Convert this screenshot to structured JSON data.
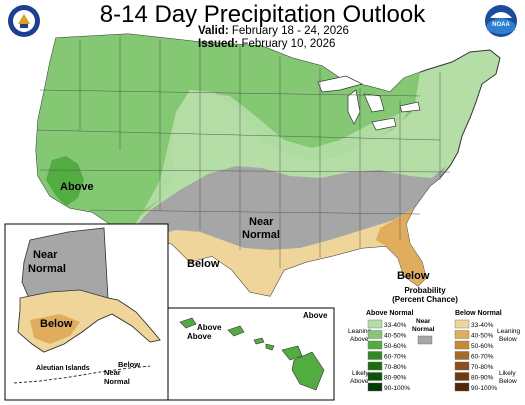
{
  "header": {
    "title": "8-14 Day Precipitation Outlook",
    "valid_label": "Valid:",
    "valid_value": "February 18 - 24, 2026",
    "issued_label": "Issued:",
    "issued_value": "February 10, 2026"
  },
  "logos": {
    "left": "doc-seal-icon",
    "right": "noaa-logo-icon",
    "right_text": "NOAA"
  },
  "map": {
    "labels": {
      "above_west": "Above",
      "near_normal_center_1": "Near",
      "near_normal_center_2": "Normal",
      "below_south": "Below",
      "below_florida": "Below",
      "alaska_near_1": "Near",
      "alaska_near_2": "Normal",
      "alaska_below": "Below",
      "aleutian": "Aleutian Islands",
      "aleutian_below": "Below",
      "aleutian_near_1": "Near",
      "aleutian_near_2": "Normal",
      "hawaii_above_1": "Above",
      "hawaii_above_2": "Above",
      "hawaii_above_3": "Above"
    },
    "colors": {
      "above_33_40": "#b4dea6",
      "above_40_50": "#84c873",
      "above_50_60": "#52ad40",
      "near_normal": "#a6a6a6",
      "below_33_40": "#efd59a",
      "below_40_50": "#e0ad5c",
      "below_50_60": "#c98a34",
      "water": "#ffffff",
      "border": "#333333"
    }
  },
  "legend": {
    "title_1": "Probability",
    "title_2": "(Percent Chance)",
    "above_header": "Above Normal",
    "below_header": "Below Normal",
    "near_1": "Near",
    "near_2": "Normal",
    "leaning_above_1": "Leaning",
    "leaning_above_2": "Above",
    "likely_above_1": "Likely",
    "likely_above_2": "Above",
    "leaning_below_1": "Leaning",
    "leaning_below_2": "Below",
    "likely_below_1": "Likely",
    "likely_below_2": "Below",
    "above_bins": [
      {
        "label": "33-40%",
        "color": "#b4dea6"
      },
      {
        "label": "40-50%",
        "color": "#84c873"
      },
      {
        "label": "50-60%",
        "color": "#52ad40"
      },
      {
        "label": "60-70%",
        "color": "#2e8b22"
      },
      {
        "label": "70-80%",
        "color": "#1d6d15"
      },
      {
        "label": "80-90%",
        "color": "#0f520b"
      },
      {
        "label": "90-100%",
        "color": "#053a03"
      }
    ],
    "below_bins": [
      {
        "label": "33-40%",
        "color": "#efd59a"
      },
      {
        "label": "40-50%",
        "color": "#e0ad5c"
      },
      {
        "label": "50-60%",
        "color": "#c98a34"
      },
      {
        "label": "60-70%",
        "color": "#a66a28"
      },
      {
        "label": "70-80%",
        "color": "#8a4f1c"
      },
      {
        "label": "80-90%",
        "color": "#6e3a12"
      },
      {
        "label": "90-100%",
        "color": "#52270a"
      }
    ]
  }
}
